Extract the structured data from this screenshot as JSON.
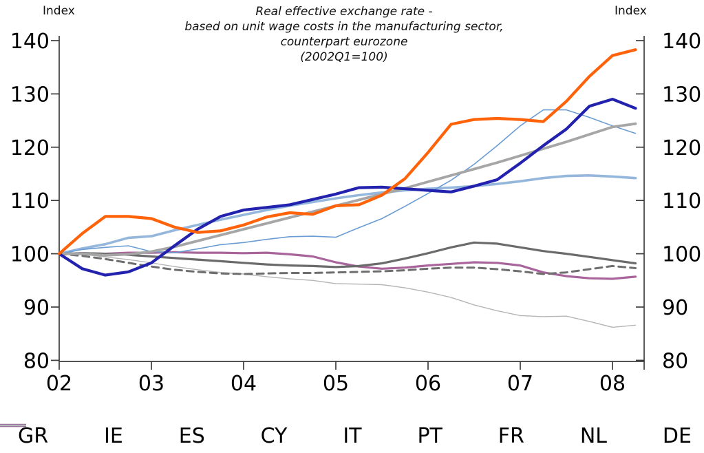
{
  "header": {
    "index_left": "Index",
    "index_right": "Index"
  },
  "title": {
    "lines": [
      "Real effective exchange rate -",
      "based on unit wage costs in the manufacturing sector,",
      "counterpart eurozone",
      "(2002Q1=100)"
    ]
  },
  "chart_data": {
    "type": "line",
    "title": "Real effective exchange rate - based on unit wage costs in the manufacturing sector, counterpart eurozone (2002Q1=100)",
    "axis_unit_label": "Index",
    "x_start": 2002.0,
    "x_step": 0.25,
    "x_tick_labels": [
      "02",
      "03",
      "04",
      "05",
      "06",
      "07",
      "08"
    ],
    "y_ticks": [
      80,
      90,
      100,
      110,
      120,
      130,
      140
    ],
    "ylim": [
      80,
      140
    ],
    "grid": false,
    "legend_position": "bottom",
    "series": [
      {
        "name": "GR",
        "color": "#FF6208",
        "width": 4.2,
        "dash": null,
        "values": [
          100,
          103.8,
          107.0,
          107.0,
          106.6,
          105.0,
          104.0,
          104.3,
          105.4,
          106.9,
          107.7,
          107.4,
          109.0,
          109.2,
          111.0,
          114.1,
          119.0,
          124.3,
          125.2,
          125.4,
          125.2,
          124.8,
          128.6,
          133.3,
          137.2,
          138.3
        ]
      },
      {
        "name": "IE",
        "color": "#2222AE",
        "width": 4.2,
        "dash": null,
        "values": [
          100,
          97.2,
          96.0,
          96.6,
          98.3,
          101.5,
          104.6,
          107.0,
          108.2,
          108.7,
          109.2,
          110.2,
          111.2,
          112.4,
          112.5,
          112.2,
          111.9,
          111.6,
          112.7,
          113.9,
          117.0,
          120.3,
          123.4,
          127.7,
          129.0,
          127.3
        ]
      },
      {
        "name": "ES",
        "color": "#A6A6A6",
        "width": 3.8,
        "dash": null,
        "values": [
          100,
          100.0,
          99.7,
          99.9,
          100.4,
          101.3,
          102.4,
          103.5,
          104.6,
          105.7,
          106.8,
          107.9,
          109.0,
          110.1,
          111.2,
          112.3,
          113.5,
          114.7,
          115.9,
          117.1,
          118.4,
          119.7,
          121.0,
          122.4,
          123.8,
          124.4
        ]
      },
      {
        "name": "CY",
        "color": "#6A9CD3",
        "width": 1.6,
        "dash": null,
        "values": [
          100,
          100.8,
          101.2,
          101.5,
          100.4,
          100.2,
          100.9,
          101.7,
          102.1,
          102.7,
          103.2,
          103.3,
          103.1,
          104.9,
          106.6,
          108.9,
          111.3,
          113.8,
          116.8,
          120.3,
          124.0,
          127.0,
          127.0,
          125.6,
          124.0,
          122.6
        ]
      },
      {
        "name": "IT",
        "color": "#95B7DC",
        "width": 3.6,
        "dash": null,
        "values": [
          100,
          101.0,
          101.8,
          103.0,
          103.3,
          104.4,
          105.4,
          106.4,
          107.3,
          108.2,
          109.0,
          109.7,
          110.4,
          111.0,
          111.5,
          111.9,
          112.2,
          112.4,
          112.7,
          113.1,
          113.6,
          114.2,
          114.6,
          114.7,
          114.5,
          114.2
        ]
      },
      {
        "name": "PT",
        "color": "#6B6B6B",
        "width": 3.2,
        "dash": null,
        "values": [
          100,
          100.1,
          100.0,
          99.8,
          99.5,
          99.2,
          98.9,
          98.6,
          98.3,
          98.0,
          97.8,
          97.7,
          97.5,
          97.7,
          98.2,
          99.1,
          100.1,
          101.2,
          102.1,
          101.9,
          101.2,
          100.5,
          100.0,
          99.4,
          98.8,
          98.2
        ]
      },
      {
        "name": "FR",
        "color": "#6E6E6E",
        "width": 3.0,
        "dash": "10,7",
        "values": [
          100,
          99.6,
          99.0,
          98.3,
          97.6,
          97.0,
          96.6,
          96.3,
          96.2,
          96.3,
          96.4,
          96.4,
          96.5,
          96.6,
          96.7,
          96.9,
          97.2,
          97.4,
          97.4,
          97.1,
          96.7,
          96.2,
          96.5,
          97.1,
          97.7,
          97.3
        ]
      },
      {
        "name": "NL",
        "color": "#A8649B",
        "width": 3.2,
        "dash": null,
        "values": [
          100,
          100.1,
          100.0,
          100.2,
          100.2,
          100.3,
          100.2,
          100.2,
          100.1,
          100.2,
          99.9,
          99.5,
          98.4,
          97.6,
          97.2,
          97.4,
          97.8,
          98.1,
          98.4,
          98.3,
          97.8,
          96.5,
          95.8,
          95.4,
          95.3,
          95.7
        ]
      },
      {
        "name": "DE",
        "color": "#B5B5B5",
        "width": 1.4,
        "dash": null,
        "values": [
          100,
          99.9,
          99.4,
          98.9,
          98.3,
          97.6,
          97.0,
          96.5,
          96.2,
          95.7,
          95.3,
          95.0,
          94.4,
          94.3,
          94.2,
          93.6,
          92.8,
          91.8,
          90.4,
          89.3,
          88.4,
          88.2,
          88.3,
          87.3,
          86.2,
          86.6
        ]
      }
    ]
  }
}
